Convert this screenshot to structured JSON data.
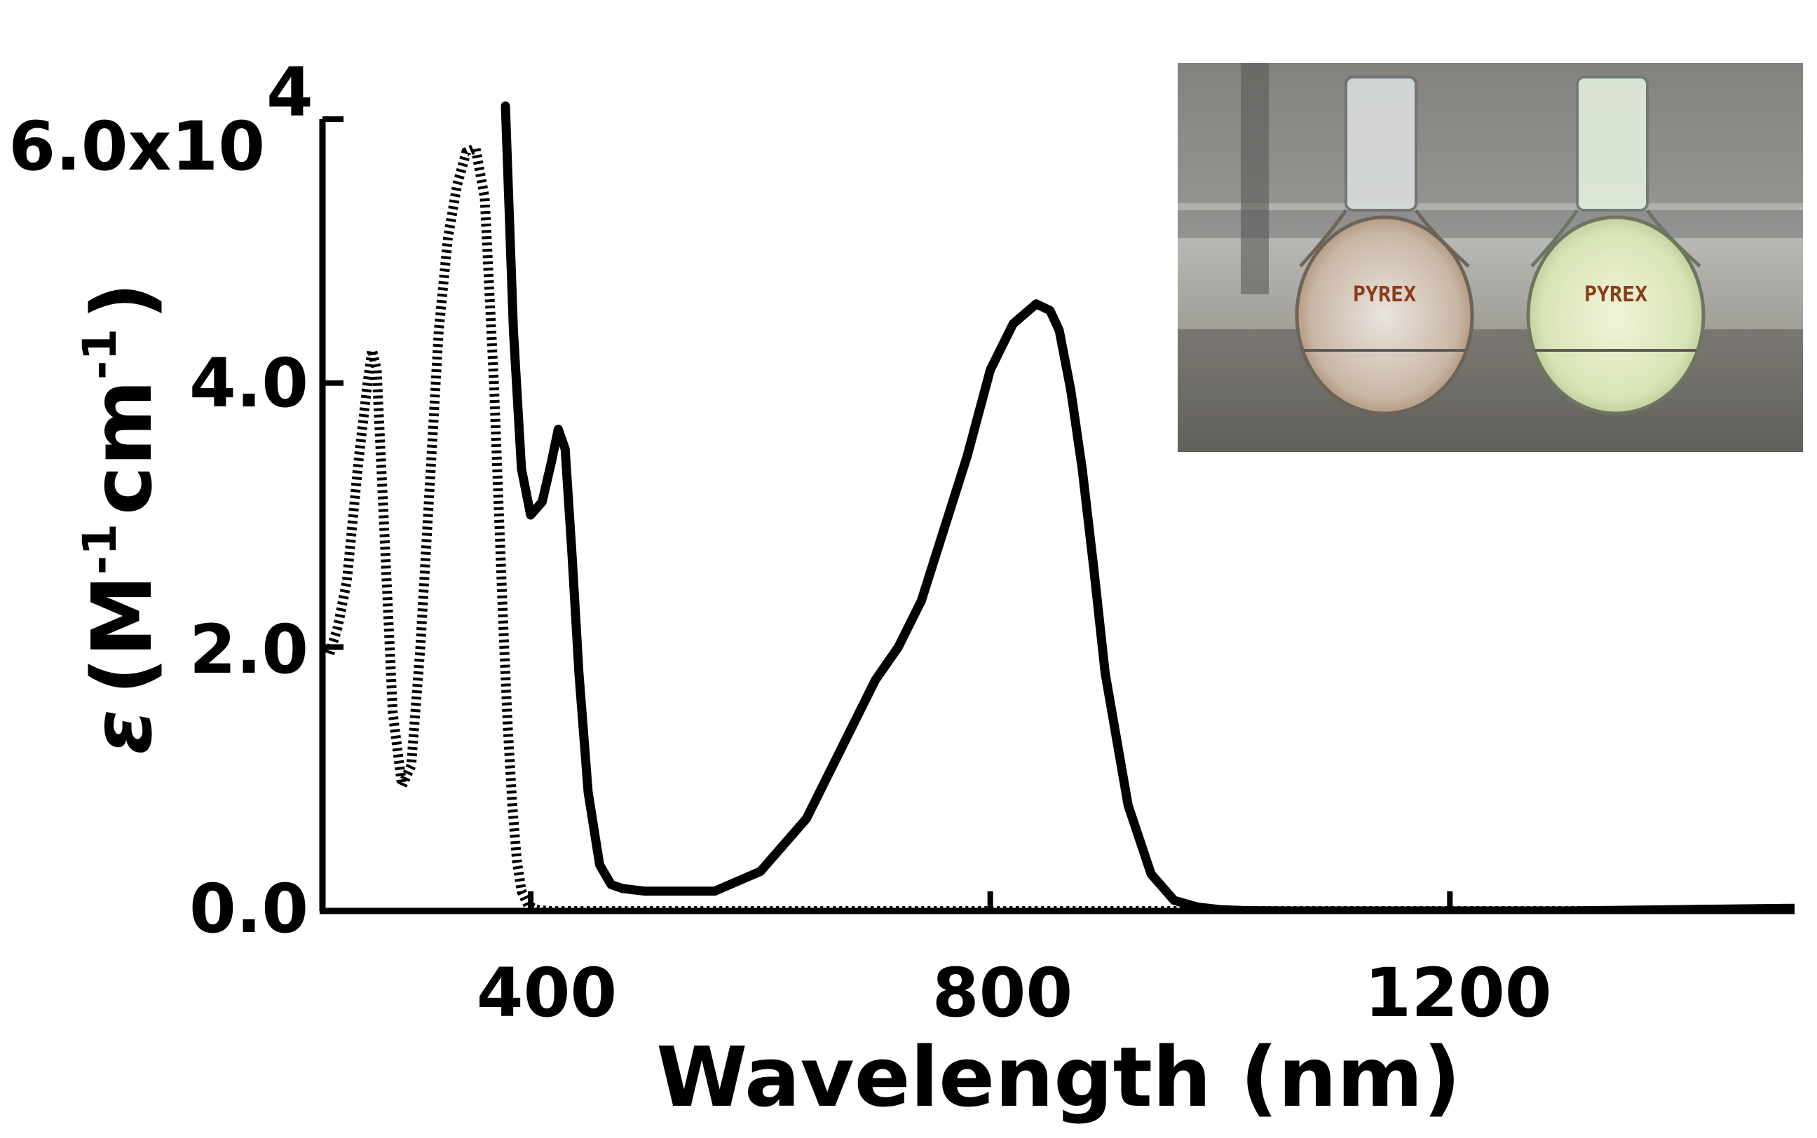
{
  "chart_data": {
    "type": "line",
    "title": "",
    "xlabel": "Wavelength (nm)",
    "ylabel": {
      "symbol": "ε",
      "open": "(M",
      "exp1": "-1",
      "mid": "cm",
      "exp2": "-1",
      "close": ")"
    },
    "xlim": [
      220,
      1500
    ],
    "ylim": [
      0,
      60000
    ],
    "x_ticks": [
      400,
      800,
      1200
    ],
    "x_tick_labels": [
      "400",
      "800",
      "1200"
    ],
    "y_ticks": [
      0,
      20000,
      40000,
      60000
    ],
    "y_tick_labels": [
      {
        "base": "0.0",
        "exp": ""
      },
      {
        "base": "2.0",
        "exp": ""
      },
      {
        "base": "4.0",
        "exp": ""
      },
      {
        "base": "6.0x10",
        "exp": "4"
      }
    ],
    "grid": false,
    "series": [
      {
        "name": "dotted",
        "style": "dotted",
        "color": "#000000",
        "x": [
          225,
          232,
          240,
          250,
          258,
          262,
          266,
          272,
          280,
          288,
          296,
          304,
          312,
          320,
          328,
          336,
          344,
          352,
          360,
          368,
          372,
          376,
          380,
          384,
          388,
          392,
          398,
          405,
          415,
          430,
          460,
          600,
          800,
          1000,
          1200,
          1400,
          1500
        ],
        "y": [
          19500,
          21500,
          25000,
          34000,
          40000,
          42500,
          41000,
          30000,
          15000,
          9500,
          11000,
          20000,
          32000,
          44000,
          51000,
          55000,
          57500,
          57800,
          54000,
          40000,
          31000,
          22000,
          14000,
          8000,
          3800,
          1500,
          400,
          100,
          0,
          0,
          0,
          0,
          0,
          0,
          0,
          0,
          0
        ]
      },
      {
        "name": "solid",
        "style": "solid",
        "color": "#000000",
        "x": [
          378,
          385,
          392,
          400,
          410,
          418,
          424,
          430,
          436,
          442,
          450,
          460,
          470,
          480,
          490,
          500,
          520,
          560,
          600,
          640,
          680,
          700,
          720,
          740,
          760,
          780,
          800,
          820,
          840,
          852,
          860,
          870,
          880,
          890,
          900,
          920,
          940,
          960,
          980,
          1000,
          1020,
          1060,
          1100,
          1200,
          1300,
          1400,
          1500
        ],
        "y": [
          61000,
          44000,
          33500,
          30000,
          31000,
          34000,
          36500,
          35000,
          27000,
          18000,
          9000,
          3500,
          2000,
          1700,
          1600,
          1500,
          1500,
          1500,
          3000,
          7000,
          14000,
          17500,
          20000,
          23500,
          29000,
          34500,
          41000,
          44500,
          46000,
          45500,
          44000,
          39500,
          33500,
          26000,
          18000,
          8000,
          2800,
          800,
          300,
          100,
          30,
          0,
          0,
          0,
          0,
          100,
          200
        ]
      }
    ]
  },
  "inset": {
    "description_tag": "photo-of-two-volumetric-flasks",
    "left_flask_text": "PYREX",
    "right_flask_text": "PYREX"
  }
}
